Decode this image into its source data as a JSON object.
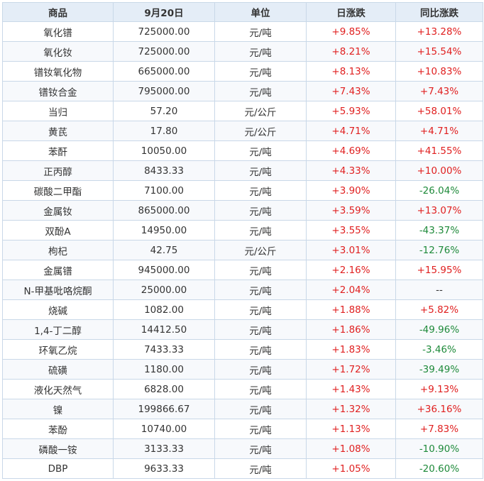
{
  "headers": [
    "商品",
    "9月20日",
    "单位",
    "日涨跌",
    "同比涨跌"
  ],
  "rows": [
    [
      "氧化镨",
      "725000.00",
      "元/吨",
      "+9.85%",
      "+13.28%"
    ],
    [
      "氧化钕",
      "725000.00",
      "元/吨",
      "+8.21%",
      "+15.54%"
    ],
    [
      "镨钕氧化物",
      "665000.00",
      "元/吨",
      "+8.13%",
      "+10.83%"
    ],
    [
      "镨钕合金",
      "795000.00",
      "元/吨",
      "+7.43%",
      "+7.43%"
    ],
    [
      "当归",
      "57.20",
      "元/公斤",
      "+5.93%",
      "+58.01%"
    ],
    [
      "黄芪",
      "17.80",
      "元/公斤",
      "+4.71%",
      "+4.71%"
    ],
    [
      "苯酐",
      "10050.00",
      "元/吨",
      "+4.69%",
      "+41.55%"
    ],
    [
      "正丙醇",
      "8433.33",
      "元/吨",
      "+4.33%",
      "+10.00%"
    ],
    [
      "碳酸二甲酯",
      "7100.00",
      "元/吨",
      "+3.90%",
      "-26.04%"
    ],
    [
      "金属钕",
      "865000.00",
      "元/吨",
      "+3.59%",
      "+13.07%"
    ],
    [
      "双酚A",
      "14950.00",
      "元/吨",
      "+3.55%",
      "-43.37%"
    ],
    [
      "枸杞",
      "42.75",
      "元/公斤",
      "+3.01%",
      "-12.76%"
    ],
    [
      "金属镨",
      "945000.00",
      "元/吨",
      "+2.16%",
      "+15.95%"
    ],
    [
      "N-甲基吡咯烷酮",
      "25000.00",
      "元/吨",
      "+2.04%",
      "--"
    ],
    [
      "烧碱",
      "1082.00",
      "元/吨",
      "+1.88%",
      "+5.82%"
    ],
    [
      "1,4-丁二醇",
      "14412.50",
      "元/吨",
      "+1.86%",
      "-49.96%"
    ],
    [
      "环氧乙烷",
      "7433.33",
      "元/吨",
      "+1.83%",
      "-3.46%"
    ],
    [
      "硫磺",
      "1180.00",
      "元/吨",
      "+1.72%",
      "-39.49%"
    ],
    [
      "液化天然气",
      "6828.00",
      "元/吨",
      "+1.43%",
      "+9.13%"
    ],
    [
      "镍",
      "199866.67",
      "元/吨",
      "+1.32%",
      "+36.16%"
    ],
    [
      "苯酚",
      "10740.00",
      "元/吨",
      "+1.13%",
      "+7.83%"
    ],
    [
      "磷酸一铵",
      "3133.33",
      "元/吨",
      "+1.08%",
      "-10.90%"
    ],
    [
      "DBP",
      "9633.33",
      "元/吨",
      "+1.05%",
      "-20.60%"
    ]
  ],
  "colors": {
    "up": "#e02020",
    "down": "#1e8a3a",
    "header_bg": "#e4edf7",
    "border": "#c9d8e8"
  }
}
